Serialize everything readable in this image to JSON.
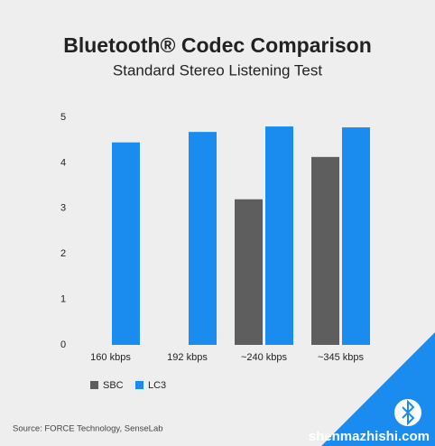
{
  "chart_data": {
    "type": "bar",
    "title": "Bluetooth® Codec Comparison",
    "subtitle": "Standard Stereo Listening Test",
    "categories": [
      "160 kbps",
      "192 kbps",
      "~240 kbps",
      "~345 kbps"
    ],
    "series": [
      {
        "name": "SBC",
        "color": "#5e5e5e",
        "values": [
          null,
          null,
          3.2,
          4.13
        ]
      },
      {
        "name": "LC3",
        "color": "#1a8cf0",
        "values": [
          4.45,
          4.68,
          4.8,
          4.78
        ]
      }
    ],
    "ylim": [
      0,
      5
    ],
    "yticks": [
      0,
      1,
      2,
      3,
      4,
      5
    ],
    "grid": false,
    "source": "Source: FORCE Technology, SenseLab",
    "watermark": "shenmazhishi.com"
  }
}
